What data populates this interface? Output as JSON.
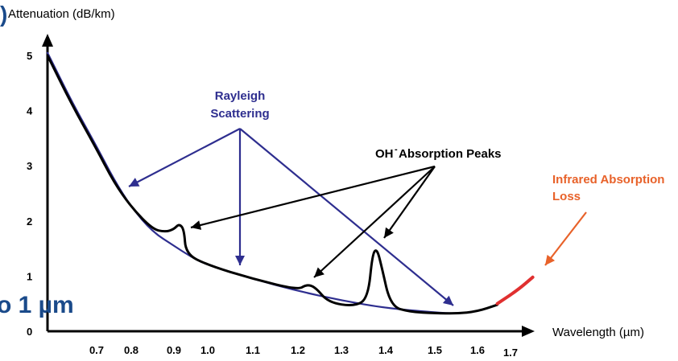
{
  "chart_data": {
    "type": "line",
    "ylabel": "Attenuation (dB/km)",
    "xlabel": "Wavelength (µm)",
    "xlim": [
      0.6,
      1.8
    ],
    "ylim": [
      0,
      5.4
    ],
    "x_ticks": [
      "0.7",
      "0.8",
      "0.9",
      "1.0",
      "1.1",
      "1.2",
      "1.3",
      "1.4",
      "1.5",
      "1.6",
      "1.7"
    ],
    "y_ticks": [
      "0",
      "1",
      "2",
      "3",
      "4",
      "5"
    ],
    "series": [
      {
        "color": "#000000",
        "x": [
          0.6,
          0.65,
          0.7,
          0.75,
          0.8,
          0.85,
          0.88,
          0.9,
          0.915,
          0.93,
          0.935,
          1.0,
          1.1,
          1.2,
          1.22,
          1.24,
          1.27,
          1.33,
          1.36,
          1.37,
          1.38,
          1.39,
          1.41,
          1.45,
          1.5,
          1.55,
          1.6,
          1.66
        ],
        "y": [
          5.0,
          4.1,
          3.3,
          2.7,
          2.25,
          1.85,
          1.8,
          1.85,
          1.95,
          1.85,
          1.4,
          1.2,
          0.95,
          0.75,
          0.85,
          0.8,
          0.52,
          0.45,
          0.6,
          1.4,
          1.5,
          1.2,
          0.45,
          0.35,
          0.33,
          0.32,
          0.36,
          0.48
        ]
      },
      {
        "color": "#2e2e8f",
        "x": [
          0.6,
          0.65,
          0.7,
          0.75,
          0.8,
          0.85,
          0.9,
          0.95,
          1.0,
          1.1,
          1.2,
          1.3,
          1.4,
          1.5,
          1.55,
          1.6,
          1.66
        ],
        "y": [
          5.05,
          4.15,
          3.35,
          2.75,
          2.25,
          1.8,
          1.55,
          1.35,
          1.2,
          0.95,
          0.73,
          0.56,
          0.42,
          0.34,
          0.32,
          0.36,
          0.48
        ]
      },
      {
        "color": "#e03030",
        "x": [
          1.66,
          1.72,
          1.76
        ],
        "y": [
          0.5,
          0.75,
          0.98
        ]
      }
    ],
    "annotations": [
      {
        "text_lines": [
          "Rayleigh",
          "Scattering"
        ],
        "color": "#2e2e8f"
      },
      {
        "text_lines": [
          "OH",
          "-",
          " Absorption Peaks"
        ],
        "color": "#000000"
      },
      {
        "text_lines": [
          "Infrared Absorption",
          "Loss"
        ],
        "color": "#e8622a"
      }
    ],
    "clipped_text": [
      ")",
      "o 1 µm"
    ]
  }
}
